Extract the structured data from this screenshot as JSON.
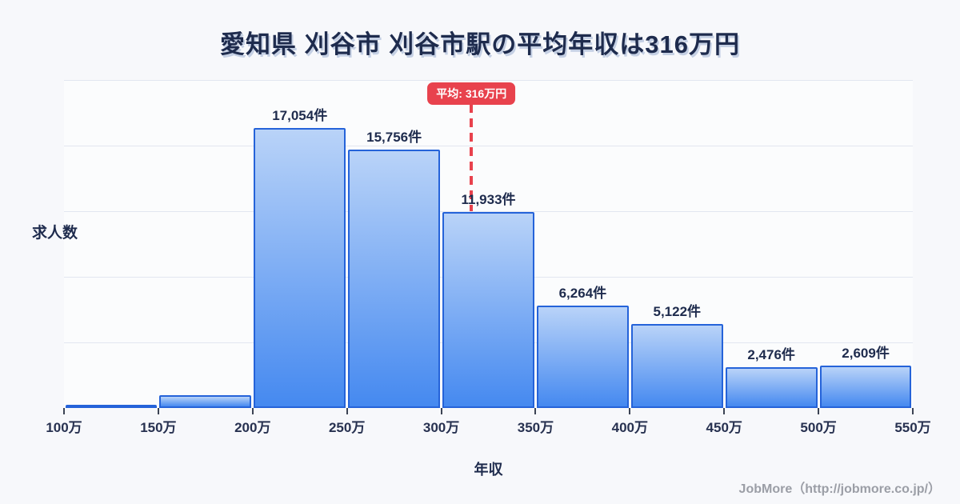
{
  "title": "愛知県 刈谷市 刈谷市駅の平均年収は316万円",
  "chart_data": {
    "type": "bar",
    "title": "愛知県 刈谷市 刈谷市駅の平均年収は316万円",
    "xlabel": "年収",
    "ylabel": "求人数",
    "x_tick_labels": [
      "100万",
      "150万",
      "200万",
      "250万",
      "300万",
      "350万",
      "400万",
      "450万",
      "500万",
      "550万"
    ],
    "xlim_man_yen": [
      100,
      550
    ],
    "bins": [
      "100万-150万",
      "150万-200万",
      "200万-250万",
      "250万-300万",
      "300万-350万",
      "350万-400万",
      "400万-450万",
      "450万-500万",
      "500万-550万"
    ],
    "values": [
      100,
      800,
      17054,
      15756,
      11933,
      6264,
      5122,
      2476,
      2609
    ],
    "value_labels": [
      "",
      "",
      "17,054件",
      "15,756件",
      "11,933件",
      "6,264件",
      "5,122件",
      "2,476件",
      "2,609件"
    ],
    "ylim": [
      0,
      20000
    ],
    "gridline_interval": 4000,
    "grid": "horizontal",
    "legend": "none",
    "average": {
      "value_man_yen": 316,
      "badge_label": "平均: 316万円"
    }
  },
  "footer": {
    "credit": "JobMore（http://jobmore.co.jp/）"
  },
  "colors": {
    "background": "#f7f8fb",
    "bar_border": "#2563d9",
    "bar_fill_top": "#b9d3f8",
    "bar_fill_bottom": "#4589f0",
    "gridline": "#e2e6f0",
    "text_dark": "#1e2b4d",
    "average_red": "#e8424d",
    "footer_gray": "#9b9ea6"
  }
}
